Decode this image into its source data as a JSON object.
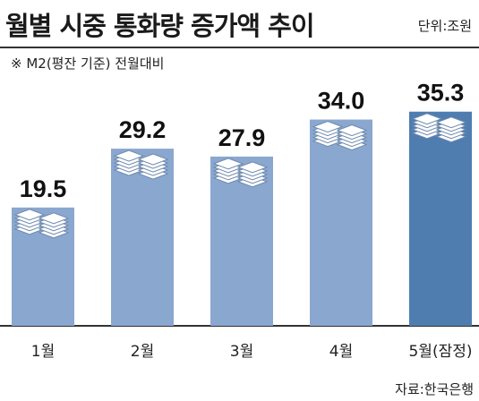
{
  "header": {
    "title": "월별 시중 통화량 증가액 추이",
    "unit": "단위:조원",
    "subtitle": "※ M2(평잔 기준) 전월대비"
  },
  "footer": {
    "source": "자료:한국은행"
  },
  "colors": {
    "bar": "#8aa7cf",
    "bar_highlight": "#4f7db0",
    "baseline": "#333333",
    "label": "#111111"
  },
  "chart_data": {
    "type": "bar",
    "title": "월별 시중 통화량 증가액 추이",
    "ylabel": "",
    "xlabel": "",
    "categories": [
      "1월",
      "2월",
      "3월",
      "4월",
      "5월(잠정)"
    ],
    "values": [
      19.5,
      29.2,
      27.9,
      34.0,
      35.3
    ],
    "value_labels": [
      "19.5",
      "29.2",
      "27.9",
      "34.0",
      "35.3"
    ],
    "highlight_index": 4,
    "ylim": [
      0,
      36
    ],
    "grid": false,
    "legend": "none"
  }
}
